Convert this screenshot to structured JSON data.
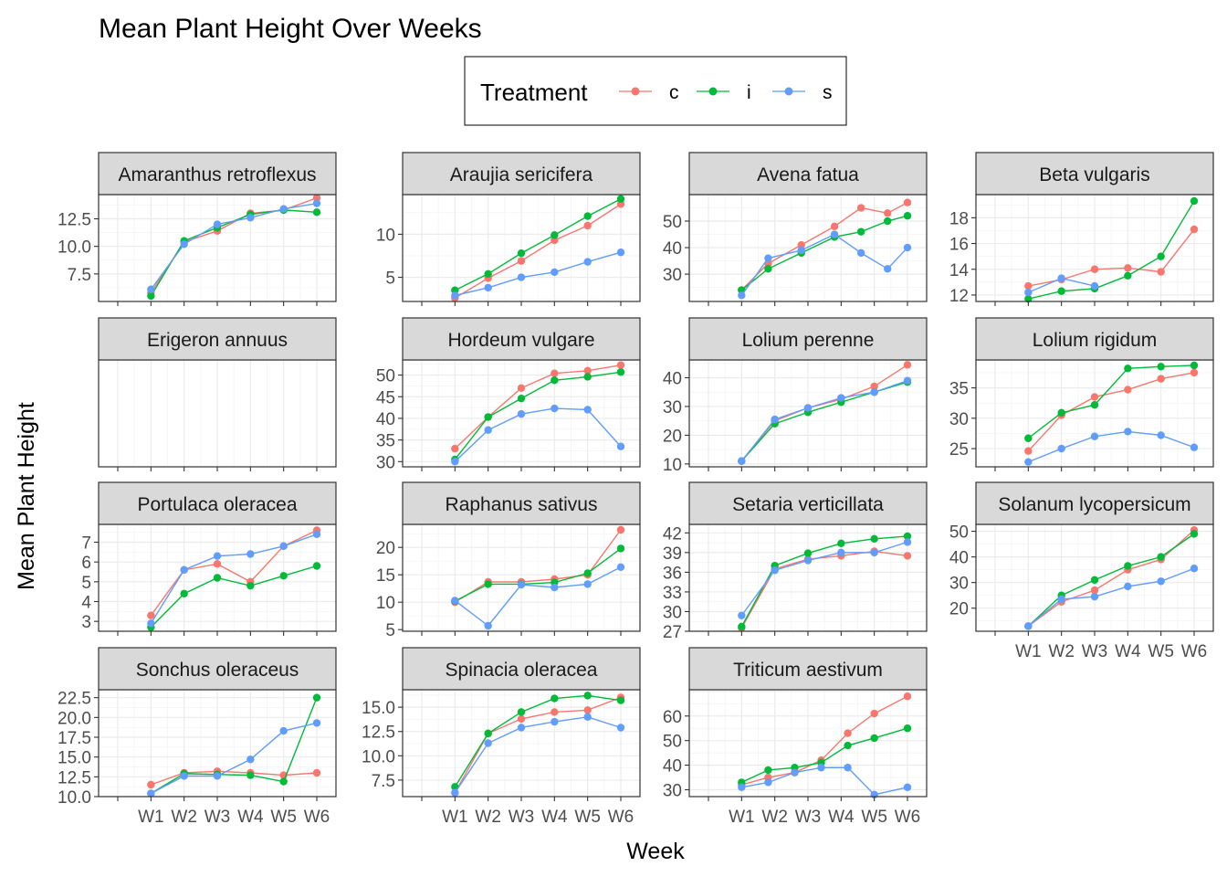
{
  "chart_data": {
    "type": "line",
    "title": "Mean Plant Height Over Weeks",
    "xlabel": "Week",
    "ylabel": "Mean Plant Height",
    "x_categories": [
      "W1",
      "W2",
      "W3",
      "W4",
      "W5",
      "W6"
    ],
    "legend": {
      "title": "Treatment",
      "position": "top",
      "entries": [
        {
          "name": "c",
          "color": "#F8766D"
        },
        {
          "name": "i",
          "color": "#00BA38"
        },
        {
          "name": "s",
          "color": "#619CFF"
        }
      ]
    },
    "facet_scales": "free_y",
    "grid": true,
    "panels": [
      {
        "title": "Amaranthus retroflexus",
        "yticks": [
          7.5,
          10.0,
          12.5
        ],
        "ylim": [
          5.0,
          14.7
        ],
        "series": [
          {
            "name": "c",
            "values": [
              5.8,
              10.4,
              11.4,
              13.0,
              13.3,
              14.4
            ]
          },
          {
            "name": "i",
            "values": [
              5.5,
              10.5,
              11.7,
              12.9,
              13.3,
              13.1
            ]
          },
          {
            "name": "s",
            "values": [
              6.1,
              10.2,
              12.0,
              12.6,
              13.4,
              13.9
            ]
          }
        ]
      },
      {
        "title": "Araujia sericifera",
        "yticks": [
          5,
          10
        ],
        "ylim": [
          2.2,
          14.6
        ],
        "series": [
          {
            "name": "c",
            "values": [
              2.6,
              4.9,
              6.9,
              9.3,
              11.0,
              13.5
            ]
          },
          {
            "name": "i",
            "values": [
              3.5,
              5.4,
              7.8,
              9.9,
              12.1,
              14.1
            ]
          },
          {
            "name": "s",
            "values": [
              2.9,
              3.8,
              5.0,
              5.6,
              6.8,
              7.9
            ]
          }
        ]
      },
      {
        "title": "Avena fatua",
        "yticks": [
          30,
          40,
          50
        ],
        "ylim": [
          19.7,
          60.0
        ],
        "series": [
          {
            "name": "c",
            "values": [
              24,
              34,
              41,
              48,
              55,
              53,
              57
            ]
          },
          {
            "name": "i",
            "values": [
              24,
              32,
              38,
              44,
              46,
              50,
              52
            ]
          },
          {
            "name": "s",
            "values": [
              22,
              36,
              39,
              45,
              38,
              32,
              40
            ]
          }
        ],
        "x_values": [
          "W1",
          "W1.8",
          "W2.8",
          "W3.8",
          "W4.6",
          "W5.4",
          "W6"
        ]
      },
      {
        "title": "Beta vulgaris",
        "yticks": [
          12,
          14,
          16,
          18
        ],
        "ylim": [
          11.5,
          19.8
        ],
        "series": [
          {
            "name": "c",
            "values": [
              12.7,
              13.2,
              14.0,
              14.1,
              13.8,
              17.1
            ]
          },
          {
            "name": "i",
            "values": [
              11.7,
              12.3,
              12.5,
              13.5,
              15.0,
              19.3
            ]
          },
          {
            "name": "s",
            "values": [
              12.2,
              13.3,
              12.7
            ]
          }
        ]
      },
      {
        "title": "Erigeron annuus",
        "yticks": [],
        "ylim": [
          0,
          1
        ],
        "series": []
      },
      {
        "title": "Hordeum vulgare",
        "yticks": [
          30,
          35,
          40,
          45,
          50
        ],
        "ylim": [
          28.8,
          53.5
        ],
        "series": [
          {
            "name": "c",
            "values": [
              33.0,
              40.3,
              47.0,
              50.4,
              51.0,
              52.3
            ]
          },
          {
            "name": "i",
            "values": [
              30.5,
              40.3,
              44.6,
              48.8,
              49.6,
              50.7
            ]
          },
          {
            "name": "s",
            "values": [
              30.0,
              37.3,
              41.0,
              42.3,
              42.0,
              33.5
            ]
          }
        ]
      },
      {
        "title": "Lolium perenne",
        "yticks": [
          10,
          20,
          30,
          40
        ],
        "ylim": [
          9.0,
          46.2
        ],
        "series": [
          {
            "name": "c",
            "values": [
              11.0,
              25.0,
              29.5,
              32.5,
              37.0,
              44.5
            ]
          },
          {
            "name": "i",
            "values": [
              11.0,
              24.0,
              28.0,
              31.5,
              35.0,
              38.5
            ]
          },
          {
            "name": "s",
            "values": [
              11.0,
              25.5,
              29.5,
              33.0,
              35.0,
              39.0
            ]
          }
        ]
      },
      {
        "title": "Lolium rigidum",
        "yticks": [
          25,
          30,
          35
        ],
        "ylim": [
          22.0,
          39.6
        ],
        "series": [
          {
            "name": "c",
            "values": [
              24.6,
              30.5,
              33.5,
              34.7,
              36.5,
              37.5
            ]
          },
          {
            "name": "i",
            "values": [
              26.7,
              30.9,
              32.2,
              38.2,
              38.5,
              38.7
            ]
          },
          {
            "name": "s",
            "values": [
              22.8,
              25.0,
              27.0,
              27.8,
              27.2,
              25.2
            ]
          }
        ]
      },
      {
        "title": "Portulaca oleracea",
        "yticks": [
          3,
          4,
          5,
          6,
          7
        ],
        "ylim": [
          2.5,
          7.9
        ],
        "series": [
          {
            "name": "c",
            "values": [
              3.3,
              5.6,
              5.9,
              5.0,
              6.8,
              7.6
            ]
          },
          {
            "name": "i",
            "values": [
              2.7,
              4.4,
              5.2,
              4.8,
              5.3,
              5.8
            ]
          },
          {
            "name": "s",
            "values": [
              2.9,
              5.6,
              6.3,
              6.4,
              6.8,
              7.4
            ]
          }
        ]
      },
      {
        "title": "Raphanus sativus",
        "yticks": [
          5,
          10,
          15,
          20
        ],
        "ylim": [
          4.7,
          24.2
        ],
        "series": [
          {
            "name": "c",
            "values": [
              10.0,
              13.7,
              13.7,
              14.2,
              15.0,
              23.2
            ]
          },
          {
            "name": "i",
            "values": [
              10.2,
              13.3,
              13.3,
              13.6,
              15.3,
              19.8
            ]
          },
          {
            "name": "s",
            "values": [
              10.3,
              5.7,
              13.2,
              12.7,
              13.3,
              16.4
            ]
          }
        ]
      },
      {
        "title": "Setaria verticillata",
        "yticks": [
          27,
          30,
          33,
          36,
          39,
          42
        ],
        "ylim": [
          27.0,
          43.3
        ],
        "series": [
          {
            "name": "c",
            "values": [
              27.5,
              36.5,
              38.0,
              38.5,
              39.2,
              38.5
            ]
          },
          {
            "name": "i",
            "values": [
              27.7,
              37.0,
              38.9,
              40.4,
              41.1,
              41.5
            ]
          },
          {
            "name": "s",
            "values": [
              29.4,
              36.3,
              37.8,
              39.0,
              39.0,
              40.6
            ]
          }
        ]
      },
      {
        "title": "Solanum lycopersicum",
        "yticks": [
          20,
          30,
          40,
          50
        ],
        "ylim": [
          11.0,
          52.7
        ],
        "series": [
          {
            "name": "c",
            "values": [
              13.0,
              22.5,
              27.0,
              35.0,
              39.0,
              50.5
            ]
          },
          {
            "name": "i",
            "values": [
              13.0,
              25.0,
              31.0,
              36.5,
              40.0,
              49.0
            ]
          },
          {
            "name": "s",
            "values": [
              13.0,
              23.5,
              24.5,
              28.5,
              30.5,
              35.5
            ]
          }
        ]
      },
      {
        "title": "Sonchus oleraceus",
        "yticks": [
          10.0,
          12.5,
          15.0,
          17.5,
          20.0,
          22.5
        ],
        "ylim": [
          10.0,
          23.5
        ],
        "series": [
          {
            "name": "c",
            "values": [
              11.5,
              13.0,
              13.2,
              13.0,
              12.7,
              13.0
            ]
          },
          {
            "name": "i",
            "values": [
              10.4,
              12.9,
              12.8,
              12.7,
              11.9,
              22.5
            ]
          },
          {
            "name": "s",
            "values": [
              10.4,
              12.6,
              12.6,
              14.7,
              18.3,
              19.3
            ]
          }
        ]
      },
      {
        "title": "Spinacia oleracea",
        "yticks": [
          7.5,
          10.0,
          12.5,
          15.0
        ],
        "ylim": [
          5.8,
          16.8
        ],
        "series": [
          {
            "name": "c",
            "values": [
              6.2,
              12.3,
              13.8,
              14.5,
              14.7,
              16.0
            ]
          },
          {
            "name": "i",
            "values": [
              6.8,
              12.3,
              14.5,
              15.9,
              16.2,
              15.7
            ]
          },
          {
            "name": "s",
            "values": [
              6.2,
              11.3,
              12.9,
              13.5,
              14.0,
              12.9
            ]
          }
        ]
      },
      {
        "title": "Triticum aestivum",
        "yticks": [
          30,
          40,
          50,
          60
        ],
        "ylim": [
          27.2,
          70.7
        ],
        "series": [
          {
            "name": "c",
            "values": [
              32,
              35,
              37,
              42,
              53,
              61,
              68
            ]
          },
          {
            "name": "i",
            "values": [
              33,
              38,
              39,
              41,
              48,
              51,
              55
            ]
          },
          {
            "name": "s",
            "values": [
              31,
              33,
              37,
              39,
              39,
              28,
              31
            ]
          }
        ],
        "x_values": [
          "W1",
          "W1.8",
          "W2.6",
          "W3.4",
          "W4.2",
          "W5",
          "W6"
        ]
      }
    ]
  }
}
